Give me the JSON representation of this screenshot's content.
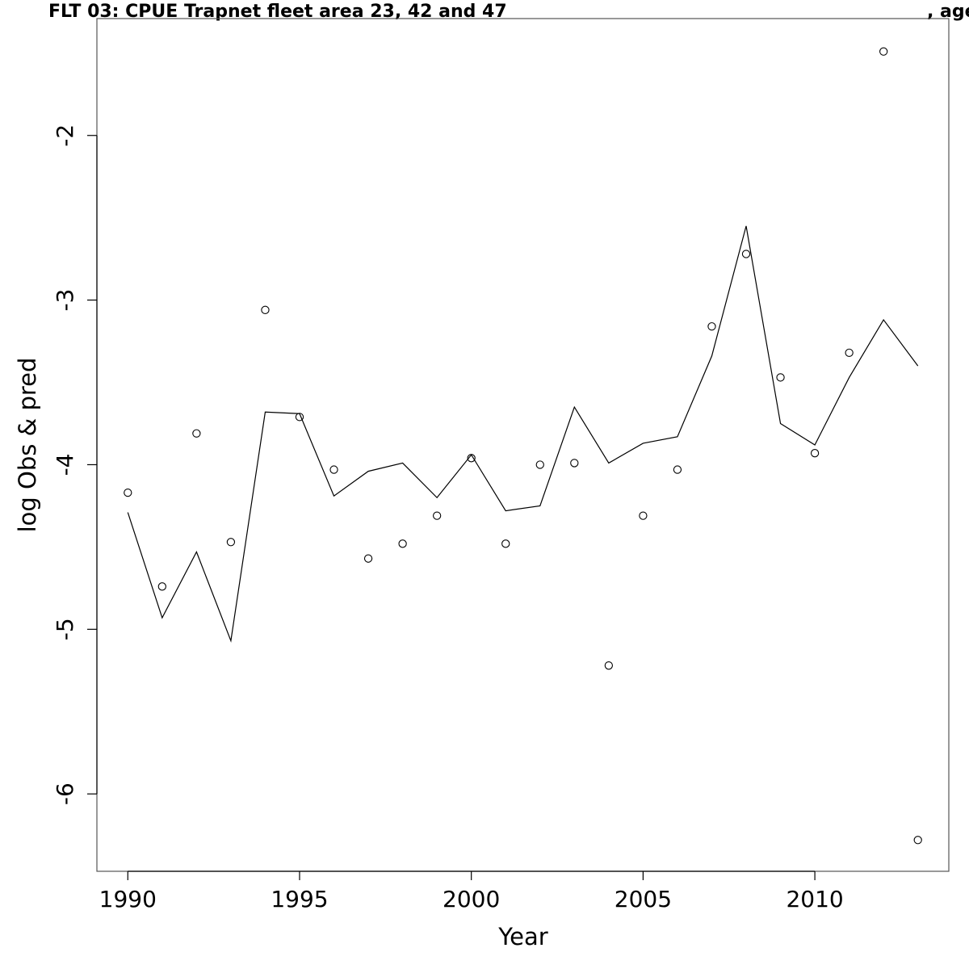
{
  "chart_data": {
    "type": "line",
    "title_left": "FLT 03: CPUE Trapnet fleet area 23, 42 and 47",
    "title_right": ", age",
    "xlabel": "Year",
    "ylabel": "log Obs & pred",
    "xlim": [
      1989.1,
      2013.9
    ],
    "ylim": [
      -6.47,
      -1.29
    ],
    "x_ticks": [
      1990,
      1995,
      2000,
      2005,
      2010
    ],
    "y_ticks": [
      -6,
      -5,
      -4,
      -3,
      -2
    ],
    "grid": false,
    "x": [
      1990,
      1991,
      1992,
      1993,
      1994,
      1995,
      1996,
      1997,
      1998,
      1999,
      2000,
      2001,
      2002,
      2003,
      2004,
      2005,
      2006,
      2007,
      2008,
      2009,
      2010,
      2011,
      2012,
      2013
    ],
    "series": [
      {
        "style": "points",
        "values": [
          -4.17,
          -4.74,
          -3.81,
          -4.47,
          -3.06,
          -3.71,
          -4.03,
          -4.57,
          -4.48,
          -4.31,
          -3.96,
          -4.48,
          -4.0,
          -3.99,
          -5.22,
          -4.31,
          -4.03,
          -3.16,
          -2.72,
          -3.47,
          -3.93,
          -3.32,
          -1.49,
          -6.28
        ]
      },
      {
        "style": "line",
        "values": [
          -4.29,
          -4.93,
          -4.53,
          -5.07,
          -3.68,
          -3.69,
          -4.19,
          -4.04,
          -3.99,
          -4.2,
          -3.94,
          -4.28,
          -4.25,
          -3.65,
          -3.99,
          -3.87,
          -3.83,
          -3.34,
          -2.55,
          -3.75,
          -3.88,
          -3.47,
          -3.12,
          -3.4
        ]
      }
    ]
  }
}
